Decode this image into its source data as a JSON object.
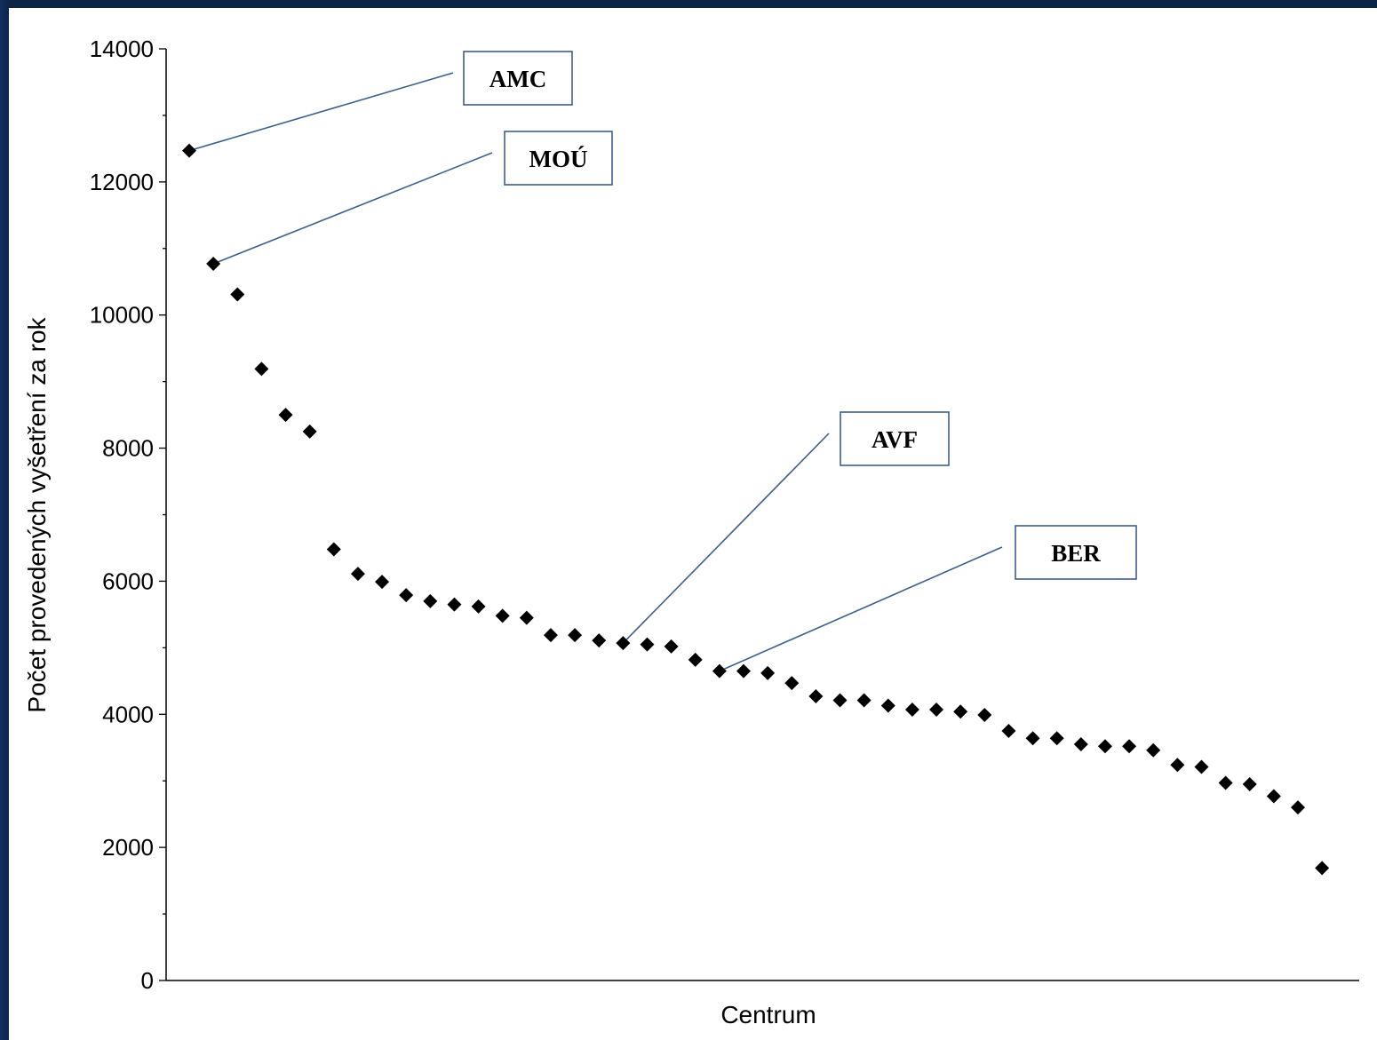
{
  "chart_data": {
    "type": "scatter",
    "title": "",
    "xlabel": "Centrum",
    "ylabel": "Počet provedených vyšetření za rok",
    "ylim": [
      0,
      14000
    ],
    "yticks": [
      "0",
      "2000",
      "4000",
      "6000",
      "8000",
      "10000",
      "12000",
      "14000"
    ],
    "x_ticks_shown": false,
    "grid": false,
    "marker": "diamond",
    "colors": {
      "marker": "#000000",
      "callout_line": "#3d5f8c",
      "callout_border": "#3d5f8c"
    },
    "values": [
      12470,
      10770,
      10310,
      9190,
      8500,
      8250,
      6480,
      6110,
      5990,
      5790,
      5700,
      5650,
      5620,
      5480,
      5450,
      5190,
      5190,
      5110,
      5070,
      5050,
      5020,
      4820,
      4650,
      4650,
      4620,
      4470,
      4270,
      4210,
      4210,
      4130,
      4070,
      4070,
      4040,
      3990,
      3750,
      3640,
      3640,
      3550,
      3520,
      3520,
      3460,
      3240,
      3210,
      2970,
      2950,
      2770,
      2600,
      1690
    ],
    "annotations": [
      {
        "label": "AMC",
        "point_index": 0
      },
      {
        "label": "MOÚ",
        "point_index": 1
      },
      {
        "label": "AVF",
        "point_index": 18
      },
      {
        "label": "BER",
        "point_index": 22
      }
    ]
  }
}
